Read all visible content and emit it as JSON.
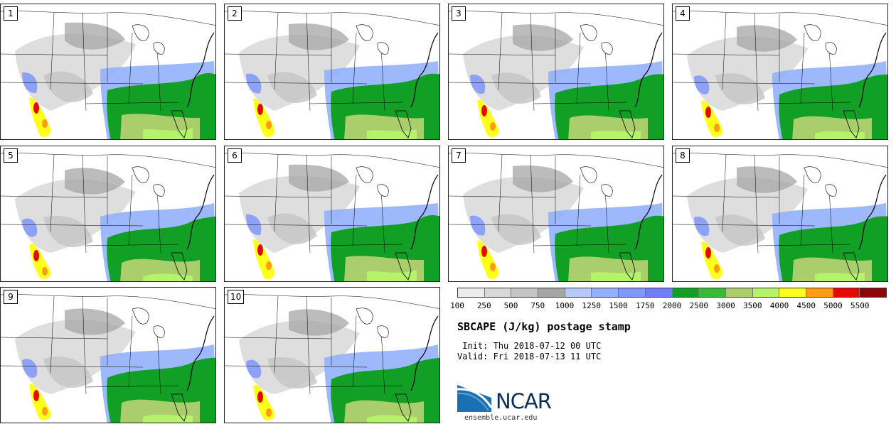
{
  "panels": [
    {
      "label": "1"
    },
    {
      "label": "2"
    },
    {
      "label": "3"
    },
    {
      "label": "4"
    },
    {
      "label": "5"
    },
    {
      "label": "6"
    },
    {
      "label": "7"
    },
    {
      "label": "8"
    },
    {
      "label": "9"
    },
    {
      "label": "10"
    }
  ],
  "colorbar": {
    "colors": [
      "#ececec",
      "#d8d8d8",
      "#c4c4c4",
      "#a6a6a6",
      "#b7c9fb",
      "#93b0fc",
      "#7f98fb",
      "#6f7ef7",
      "#119f25",
      "#39b93a",
      "#aace6b",
      "#b5f36a",
      "#ffff1c",
      "#ff9e10",
      "#e70808",
      "#8b0707"
    ],
    "labels": [
      "100",
      "250",
      "500",
      "750",
      "1000",
      "1250",
      "1500",
      "1750",
      "2000",
      "2500",
      "3000",
      "3500",
      "4000",
      "4500",
      "5000",
      "5500"
    ]
  },
  "title": "SBCAPE (J/kg) postage stamp",
  "init": " Init: Thu 2018-07-12 00 UTC",
  "valid": "Valid: Fri 2018-07-13 11 UTC",
  "logo_text": "NCAR",
  "site": "ensemble.ucar.edu"
}
